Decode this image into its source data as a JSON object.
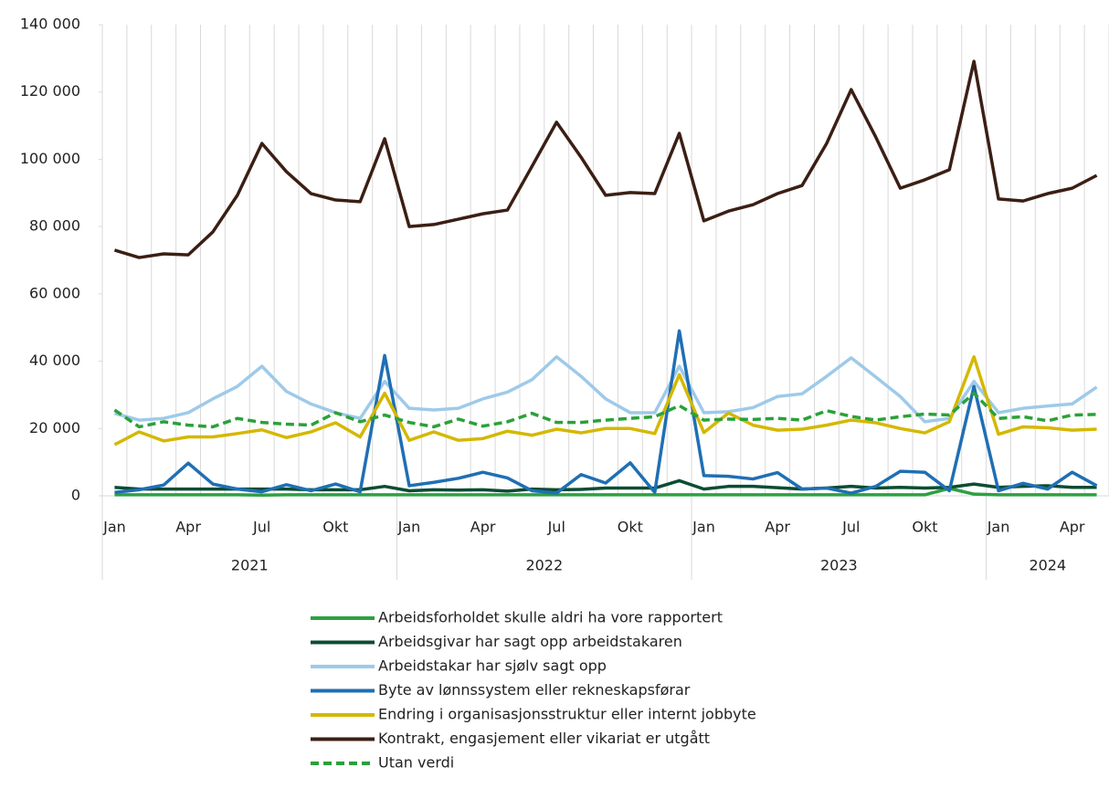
{
  "chart_data": {
    "type": "line",
    "categories": [
      "Jan",
      null,
      null,
      "Apr",
      null,
      null,
      "Jul",
      null,
      null,
      "Okt",
      null,
      null,
      "Jan",
      null,
      null,
      "Apr",
      null,
      null,
      "Jul",
      null,
      null,
      "Okt",
      null,
      null,
      "Jan",
      null,
      null,
      "Apr",
      null,
      null,
      "Jul",
      null,
      null,
      "Okt",
      null,
      null,
      "Jan",
      null,
      null,
      "Apr",
      null
    ],
    "years": [
      "2021",
      "2022",
      "2023",
      "2024"
    ],
    "ylim": [
      0,
      140000
    ],
    "yticks": [
      0,
      {
        "value": 20000,
        "label": "20 000"
      },
      {
        "value": 40000,
        "label": "40 000"
      },
      {
        "value": 60000,
        "label": "60 000"
      },
      {
        "value": 80000,
        "label": "80 000"
      },
      {
        "value": 100000,
        "label": "100 000"
      },
      {
        "value": 120000,
        "label": "120 000"
      },
      {
        "value": 140000,
        "label": "140 000"
      }
    ],
    "series": [
      {
        "name": "Arbeidsforholdet skulle aldri ha vore rapportert",
        "color": "#2ea043",
        "style": "solid",
        "values": [
          300,
          300,
          300,
          300,
          300,
          300,
          200,
          300,
          300,
          300,
          300,
          300,
          300,
          300,
          300,
          300,
          300,
          300,
          300,
          300,
          300,
          300,
          300,
          300,
          300,
          300,
          300,
          300,
          300,
          300,
          300,
          300,
          300,
          300,
          2200,
          500,
          300,
          300,
          300,
          300,
          300
        ]
      },
      {
        "name": "Arbeidsgivar har sagt opp arbeidstakaren",
        "color": "#0b4d33",
        "style": "solid",
        "values": [
          2500,
          2000,
          2000,
          2000,
          2000,
          2000,
          2000,
          2000,
          1800,
          1800,
          1800,
          2800,
          1500,
          1800,
          1700,
          1800,
          1400,
          2000,
          1800,
          1900,
          2300,
          2300,
          2300,
          4500,
          2000,
          2800,
          2800,
          2400,
          2000,
          2300,
          2800,
          2300,
          2500,
          2300,
          2500,
          3500,
          2500,
          2800,
          3000,
          2500,
          2500
        ]
      },
      {
        "name": "Arbeidstakar har sjølv sagt opp",
        "color": "#9ecae9",
        "style": "solid",
        "values": [
          24500,
          22500,
          23000,
          24700,
          28800,
          32500,
          38500,
          31000,
          27300,
          24700,
          23000,
          34000,
          26000,
          25500,
          26000,
          28800,
          30800,
          34500,
          41300,
          35500,
          28800,
          24700,
          24700,
          38500,
          24700,
          25000,
          26200,
          29500,
          30300,
          35500,
          41000,
          35300,
          29500,
          22000,
          23000,
          34000,
          24700,
          26000,
          26700,
          27300,
          32300
        ]
      },
      {
        "name": "Byte av lønnssystem eller rekneskapsførar",
        "color": "#1f6fb4",
        "style": "solid",
        "values": [
          1000,
          1800,
          3200,
          9700,
          3500,
          2000,
          1200,
          3300,
          1500,
          3500,
          1200,
          41700,
          3000,
          4000,
          5200,
          7000,
          5300,
          1500,
          800,
          6300,
          3800,
          9800,
          1000,
          49000,
          6000,
          5800,
          5000,
          6900,
          2000,
          2300,
          800,
          2800,
          7300,
          7000,
          1500,
          32500,
          1500,
          3700,
          2000,
          7000,
          3000
        ]
      },
      {
        "name": "Endring i organisasjonsstruktur eller internt jobbyte",
        "color": "#d4b800",
        "style": "solid",
        "values": [
          15200,
          19000,
          16300,
          17500,
          17500,
          18500,
          19600,
          17300,
          19000,
          21700,
          17500,
          30500,
          16500,
          19000,
          16500,
          17000,
          19200,
          18000,
          19800,
          18700,
          20000,
          20000,
          18500,
          36000,
          18800,
          24600,
          21000,
          19500,
          19800,
          21000,
          22500,
          21700,
          20000,
          18700,
          22000,
          41300,
          18300,
          20500,
          20200,
          19500,
          19800
        ]
      },
      {
        "name": "Kontrakt, engasjement eller vikariat er utgått",
        "color": "#3b1f14",
        "style": "solid",
        "values": [
          73000,
          70800,
          71900,
          71600,
          78400,
          89300,
          104700,
          96300,
          89800,
          87900,
          87400,
          106100,
          80000,
          80600,
          82200,
          83800,
          84900,
          97900,
          111000,
          100600,
          89300,
          90100,
          89800,
          107700,
          81700,
          84600,
          86500,
          89800,
          92200,
          104700,
          120700,
          106600,
          91400,
          93900,
          96900,
          129100,
          88200,
          87600,
          89800,
          91400,
          95200
        ]
      },
      {
        "name": "Utan verdi",
        "color": "#2aa13a",
        "style": "dashed",
        "values": [
          25500,
          20500,
          22000,
          21000,
          20500,
          23000,
          21800,
          21300,
          21000,
          24700,
          22000,
          24000,
          21800,
          20500,
          22800,
          20700,
          22000,
          24500,
          21800,
          21800,
          22500,
          23000,
          23500,
          26800,
          22500,
          22800,
          22700,
          23000,
          22500,
          25300,
          23600,
          22500,
          23500,
          24300,
          24000,
          30500,
          23000,
          23500,
          22300,
          24000,
          24200
        ]
      }
    ]
  }
}
